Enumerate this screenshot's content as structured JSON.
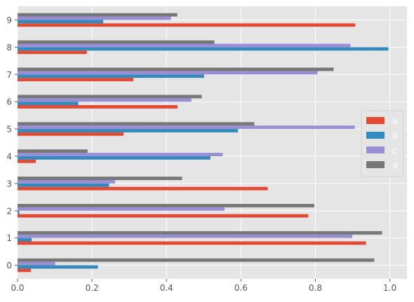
{
  "chart_data": {
    "type": "bar",
    "orientation": "horizontal",
    "style": "ggplot",
    "categories": [
      "0",
      "1",
      "2",
      "3",
      "4",
      "5",
      "6",
      "7",
      "8",
      "9"
    ],
    "series": [
      {
        "name": "a",
        "color": "#E24A33",
        "values": [
          0.036,
          0.936,
          0.781,
          0.672,
          0.049,
          0.285,
          0.43,
          0.311,
          0.186,
          0.907
        ]
      },
      {
        "name": "b",
        "color": "#348ABD",
        "values": [
          0.216,
          0.038,
          0.005,
          0.246,
          0.518,
          0.592,
          0.163,
          0.501,
          0.996,
          0.23
        ]
      },
      {
        "name": "c",
        "color": "#988ED5",
        "values": [
          0.101,
          0.899,
          0.556,
          0.262,
          0.551,
          0.906,
          0.467,
          0.806,
          0.894,
          0.412
        ]
      },
      {
        "name": "d",
        "color": "#777777",
        "values": [
          0.958,
          0.979,
          0.797,
          0.442,
          0.188,
          0.636,
          0.495,
          0.849,
          0.529,
          0.429
        ]
      }
    ],
    "xlim": [
      0,
      1.046
    ],
    "xticks": [
      0.0,
      0.2,
      0.4,
      0.6,
      0.8,
      1.0
    ],
    "xtick_labels": [
      "0.0",
      "0.2",
      "0.4",
      "0.6",
      "0.8",
      "1.0"
    ],
    "title": "",
    "xlabel": "",
    "ylabel": "",
    "grid": true,
    "legend_position": "right",
    "colors": {
      "panel_bg": "#E5E5E5",
      "grid": "#FFFFFF",
      "tick_text": "#555555"
    }
  }
}
